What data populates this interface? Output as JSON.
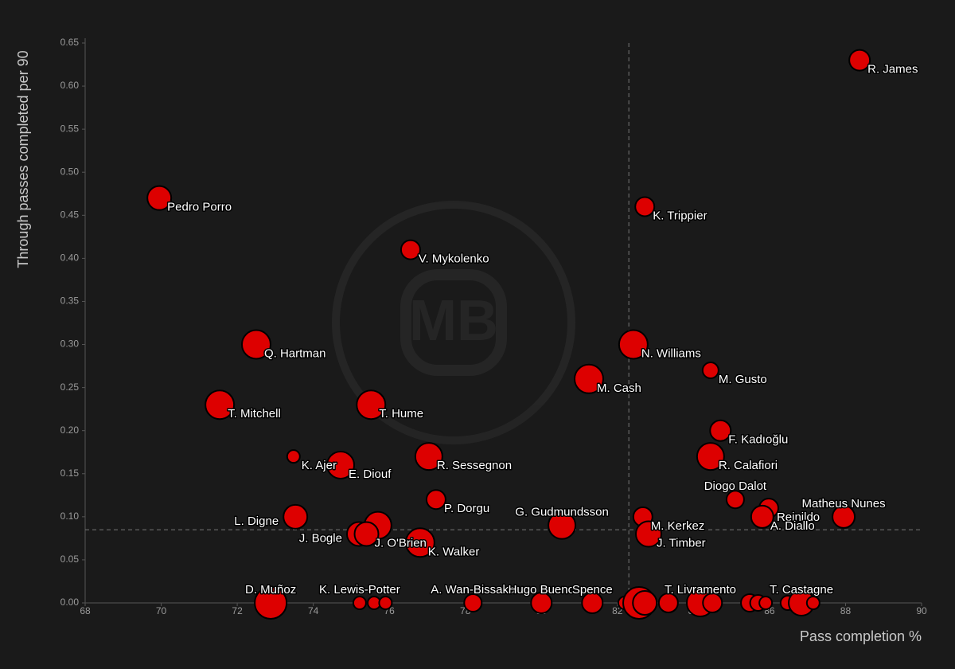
{
  "chart_data": {
    "type": "scatter",
    "watermark": "MB",
    "x_label": "Pass completion %",
    "y_label": "Through passes completed per 90",
    "xlim": [
      68,
      90
    ],
    "xticks": [
      68,
      70,
      72,
      74,
      76,
      78,
      80,
      82,
      84,
      86,
      88,
      90
    ],
    "ylim": [
      0,
      0.65
    ],
    "yticks": [
      {
        "value": 0,
        "label": "0.00"
      },
      {
        "value": 0.05,
        "label": "0.05"
      },
      {
        "value": 0.1,
        "label": "0.10"
      },
      {
        "value": 0.15,
        "label": "0.15"
      },
      {
        "value": 0.2,
        "label": "0.20"
      },
      {
        "value": 0.25,
        "label": "0.25"
      },
      {
        "value": 0.3,
        "label": "0.30"
      },
      {
        "value": 0.35,
        "label": "0.35"
      },
      {
        "value": 0.4,
        "label": "0.40"
      },
      {
        "value": 0.45,
        "label": "0.45"
      },
      {
        "value": 0.5,
        "label": "0.50"
      },
      {
        "value": 0.55,
        "label": "0.55"
      },
      {
        "value": 0.6,
        "label": "0.60"
      },
      {
        "value": 0.65,
        "label": "0.65"
      }
    ],
    "vline": 82.3,
    "hline": 0.085,
    "color": "#dd0000",
    "labels": [
      "R. James",
      "Pedro Porro",
      "K. Trippier",
      "V. Mykolenko",
      "Q. Hartman",
      "N. Williams",
      "M. Gusto",
      "M. Cash",
      "T. Mitchell",
      "T. Hume",
      "F. Kadıoğlu",
      "K. Ajer",
      "E. Diouf",
      "R. Sessegnon",
      "R. Calafiori",
      "Diogo Dalot",
      "P. Dorgu",
      "Matheus Nunes",
      "Reinildo",
      "A. Diallo",
      "L. Digne",
      "M. Kerkez",
      "G. Gudmundsson",
      "J. Timber",
      "J. Bogle",
      null,
      "J. O'Brien",
      "K. Walker",
      "D. Muñoz",
      "K. Lewis-Potter",
      null,
      null,
      "A. Wan-Bissaka",
      "Hugo Bueno",
      "Spence",
      null,
      null,
      null,
      null,
      "T. Livramento",
      null,
      null,
      null,
      null,
      null,
      "T. Castagne",
      null
    ],
    "x": [
      88.37,
      69.95,
      82.72,
      76.56,
      72.5,
      82.42,
      84.45,
      81.25,
      71.54,
      75.52,
      84.71,
      73.48,
      74.72,
      77.04,
      84.45,
      85.1,
      77.23,
      87.95,
      85.98,
      85.81,
      73.53,
      82.67,
      80.54,
      82.82,
      75.2,
      75.7,
      75.4,
      76.81,
      72.88,
      75.22,
      75.6,
      75.9,
      78.2,
      80.0,
      81.34,
      82.19,
      82.57,
      82.72,
      83.34,
      84.18,
      84.5,
      85.48,
      85.7,
      85.9,
      86.48,
      86.84,
      87.15
    ],
    "y": [
      0.63,
      0.47,
      0.46,
      0.41,
      0.3,
      0.3,
      0.27,
      0.26,
      0.23,
      0.23,
      0.2,
      0.17,
      0.16,
      0.17,
      0.17,
      0.12,
      0.12,
      0.1,
      0.11,
      0.1,
      0.1,
      0.1,
      0.09,
      0.08,
      0.08,
      0.09,
      0.08,
      0.07,
      0,
      0,
      0,
      0,
      0,
      0,
      0,
      0,
      0,
      0,
      0,
      0,
      0,
      0,
      0,
      0,
      0,
      0,
      0
    ],
    "sizes": [
      13,
      15,
      12,
      12,
      18,
      18,
      10,
      18,
      18,
      18,
      13,
      8,
      17,
      17,
      17,
      11,
      12,
      14,
      12,
      14,
      15,
      12,
      17,
      16,
      15,
      17,
      15,
      18,
      20,
      8,
      8,
      8,
      11,
      13,
      13,
      8,
      20,
      15,
      12,
      17,
      12,
      11,
      10,
      8,
      9,
      16,
      8
    ]
  }
}
